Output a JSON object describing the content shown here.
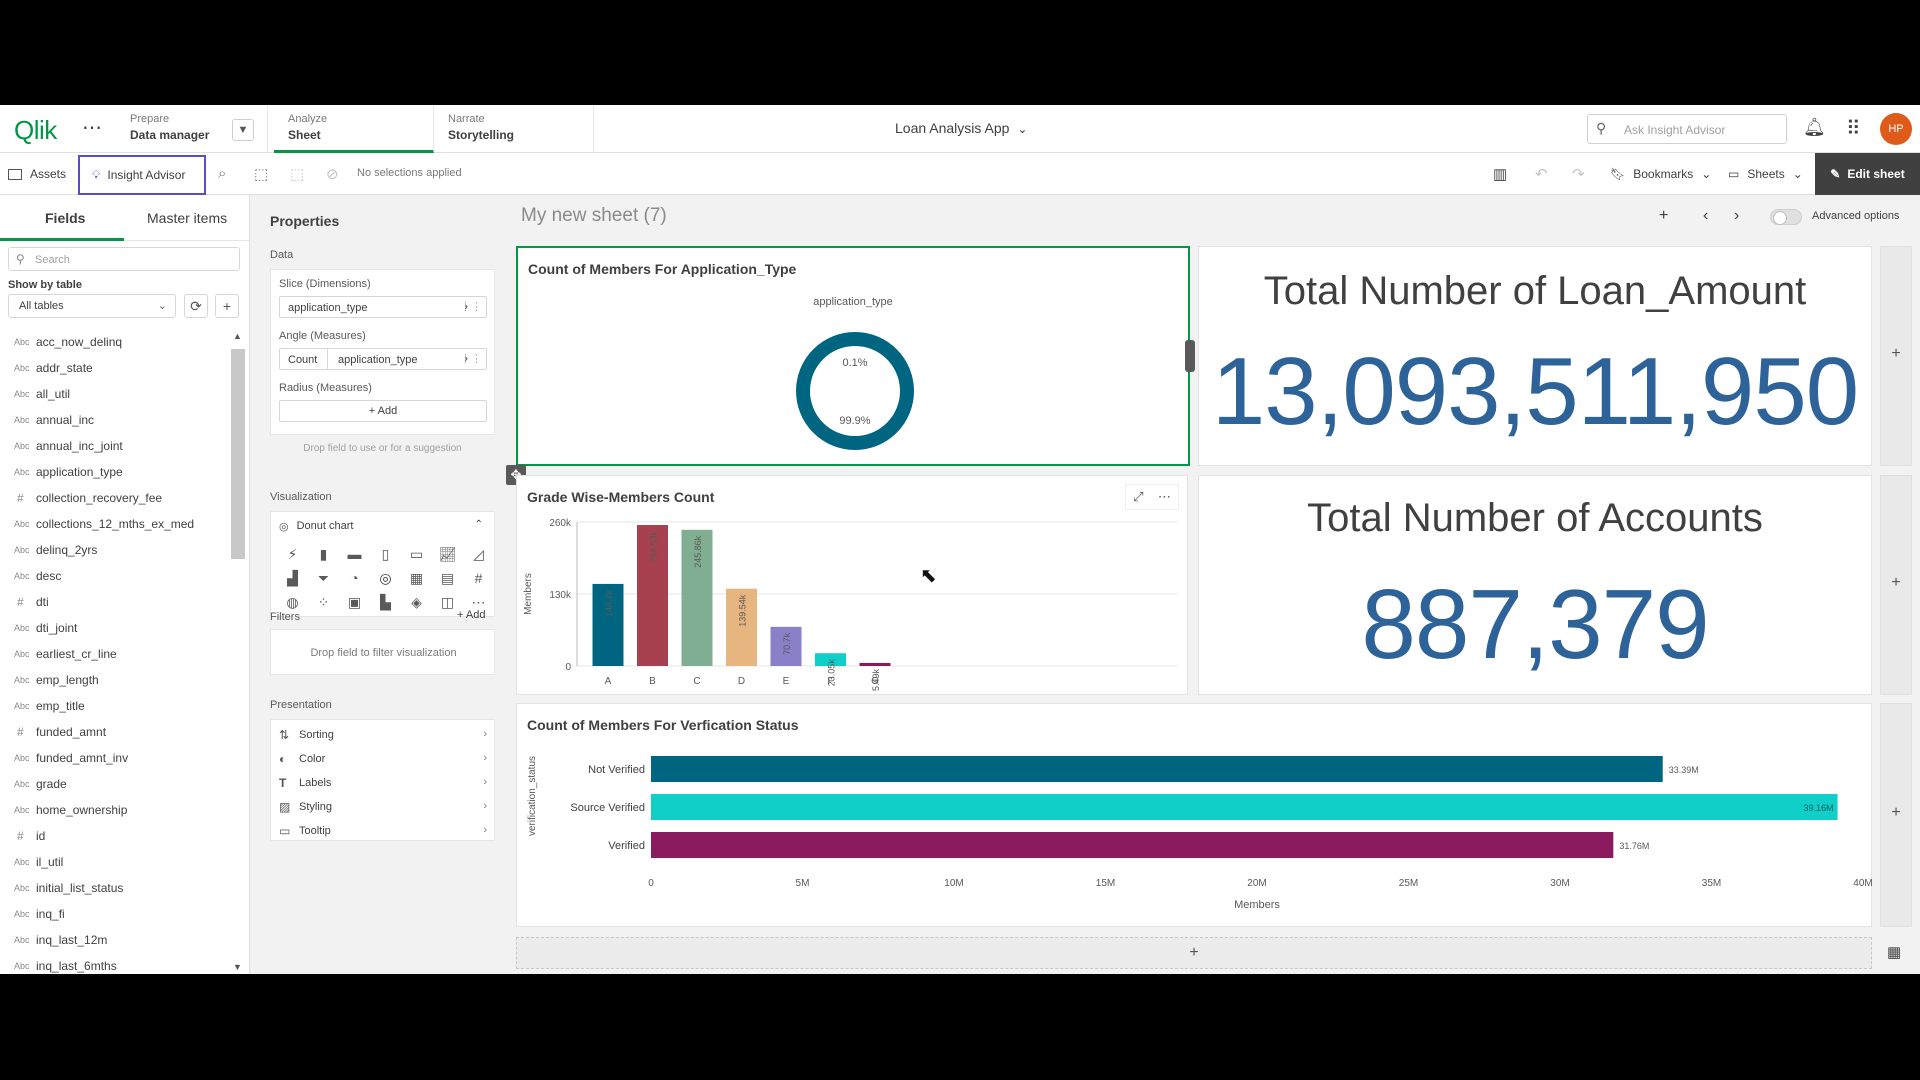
{
  "header": {
    "logo": "Qlik",
    "more_icon": "ellipsis",
    "nav": [
      {
        "small": "Prepare",
        "big": "Data manager"
      },
      {
        "small": "Analyze",
        "big": "Sheet"
      },
      {
        "small": "Narrate",
        "big": "Storytelling"
      }
    ],
    "app_title": "Loan Analysis App",
    "ask_placeholder": "Ask Insight Advisor",
    "avatar": "HP"
  },
  "toolbar": {
    "assets": "Assets",
    "insight_advisor": "Insight Advisor",
    "no_selections": "No selections applied",
    "bookmarks": "Bookmarks",
    "sheets": "Sheets",
    "edit_sheet": "Edit sheet"
  },
  "left_panel": {
    "tabs": {
      "fields": "Fields",
      "master": "Master items"
    },
    "search_placeholder": "Search",
    "show_by": "Show by table",
    "table_select": "All tables",
    "fields": [
      {
        "type": "Abc",
        "name": "acc_now_delinq"
      },
      {
        "type": "Abc",
        "name": "addr_state"
      },
      {
        "type": "Abc",
        "name": "all_util"
      },
      {
        "type": "Abc",
        "name": "annual_inc"
      },
      {
        "type": "Abc",
        "name": "annual_inc_joint"
      },
      {
        "type": "Abc",
        "name": "application_type"
      },
      {
        "type": "#",
        "name": "collection_recovery_fee"
      },
      {
        "type": "Abc",
        "name": "collections_12_mths_ex_med"
      },
      {
        "type": "Abc",
        "name": "delinq_2yrs"
      },
      {
        "type": "Abc",
        "name": "desc"
      },
      {
        "type": "#",
        "name": "dti"
      },
      {
        "type": "Abc",
        "name": "dti_joint"
      },
      {
        "type": "Abc",
        "name": "earliest_cr_line"
      },
      {
        "type": "Abc",
        "name": "emp_length"
      },
      {
        "type": "Abc",
        "name": "emp_title"
      },
      {
        "type": "#",
        "name": "funded_amnt"
      },
      {
        "type": "Abc",
        "name": "funded_amnt_inv"
      },
      {
        "type": "Abc",
        "name": "grade"
      },
      {
        "type": "Abc",
        "name": "home_ownership"
      },
      {
        "type": "#",
        "name": "id"
      },
      {
        "type": "Abc",
        "name": "il_util"
      },
      {
        "type": "Abc",
        "name": "initial_list_status"
      },
      {
        "type": "Abc",
        "name": "inq_fi"
      },
      {
        "type": "Abc",
        "name": "inq_last_12m"
      },
      {
        "type": "Abc",
        "name": "inq_last_6mths"
      }
    ]
  },
  "properties": {
    "title": "Properties",
    "data_section": "Data",
    "slice_label": "Slice (Dimensions)",
    "slice_field": "application_type",
    "angle_label": "Angle (Measures)",
    "angle_agg": "Count",
    "angle_field": "application_type",
    "radius_label": "Radius (Measures)",
    "add": "Add",
    "drop_hint": "Drop field to use or for a suggestion",
    "viz_section": "Visualization",
    "viz_selected": "Donut chart",
    "filters_section": "Filters",
    "filters_add": "Add",
    "filters_hint": "Drop field to filter visualization",
    "presentation_section": "Presentation",
    "presentation": [
      "Sorting",
      "Color",
      "Labels",
      "Styling",
      "Tooltip"
    ]
  },
  "sheet": {
    "title": "My new sheet (7)",
    "advanced": "Advanced options"
  },
  "kpis": {
    "loan_label": "Total Number of Loan_Amount",
    "loan_value": "13,093,511,950",
    "accounts_label": "Total Number of Accounts",
    "accounts_value": "887,379"
  },
  "colors": {
    "accent": "#009845",
    "kpi_blue": "#2e6399",
    "donut_main": "#006580",
    "verified_not": "#006580",
    "verified_source": "#10cfc9",
    "verified_yes": "#8a1a5e"
  },
  "chart_data": [
    {
      "type": "pie",
      "title": "Count of Members For Application_Type",
      "legend_title": "application_type",
      "slices": [
        {
          "label": "0.1%",
          "value": 0.1
        },
        {
          "label": "99.9%",
          "value": 99.9
        }
      ]
    },
    {
      "type": "bar",
      "title": "Grade Wise-Members Count",
      "ylabel": "Members",
      "categories": [
        "A",
        "B",
        "C",
        "D",
        "E",
        "F",
        "G"
      ],
      "values": [
        148200,
        254530,
        245860,
        139540,
        70700,
        23050,
        5490
      ],
      "value_labels": [
        "148.2k",
        "254.53k",
        "245.86k",
        "139.54k",
        "70.7k",
        "23.05k",
        "5.49k"
      ],
      "colors": [
        "#006580",
        "#a8414f",
        "#7fae92",
        "#e7b580",
        "#8a7fc9",
        "#10cfc9",
        "#8a1a5e"
      ],
      "ylim": [
        0,
        260000
      ],
      "yticks": [
        "0",
        "130k",
        "260k"
      ]
    },
    {
      "type": "bar",
      "orientation": "horizontal",
      "title": "Count of Members For Verfication Status",
      "ylabel": "verification_status",
      "xlabel": "Members",
      "categories": [
        "Not Verified",
        "Source Verified",
        "Verified"
      ],
      "values": [
        33390000,
        39160000,
        31760000
      ],
      "value_labels": [
        "33.39M",
        "39.16M",
        "31.76M"
      ],
      "xlim": [
        0,
        40000000
      ],
      "xticks": [
        "0",
        "5M",
        "10M",
        "15M",
        "20M",
        "25M",
        "30M",
        "35M",
        "40M"
      ]
    }
  ]
}
